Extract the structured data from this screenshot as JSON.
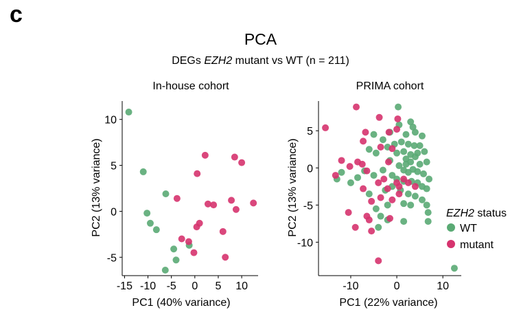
{
  "figure": {
    "panel_letter": "c",
    "title": "PCA",
    "subtitle_prefix": "DEGs ",
    "subtitle_gene": "EZH2",
    "subtitle_suffix": " mutant vs WT (n = 211)"
  },
  "legend": {
    "title_gene": "EZH2",
    "title_suffix": " status",
    "items": [
      {
        "label": "WT",
        "color": "#5aaa74"
      },
      {
        "label": "mutant",
        "color": "#d6336e"
      }
    ]
  },
  "chart_data": [
    {
      "type": "scatter",
      "title": "In-house cohort",
      "xlabel": "PC1 (40% variance)",
      "ylabel": "PC2 (13% variance)",
      "xlim": [
        -15.5,
        13.5
      ],
      "ylim": [
        -7,
        12
      ],
      "xticks": [
        -15,
        -10,
        -5,
        0,
        5,
        10
      ],
      "yticks": [
        -5,
        0,
        5,
        10
      ],
      "grid": false,
      "series": [
        {
          "name": "WT",
          "color": "#5aaa74",
          "points": [
            [
              -14.1,
              10.8
            ],
            [
              -11,
              4.3
            ],
            [
              -10.2,
              -0.2
            ],
            [
              -9.5,
              -1.3
            ],
            [
              -8.2,
              -2
            ],
            [
              -6.2,
              1.9
            ],
            [
              -4.5,
              -4.1
            ],
            [
              -4,
              -5.3
            ],
            [
              -6.3,
              -6.4
            ],
            [
              -1.2,
              -3.7
            ]
          ]
        },
        {
          "name": "mutant",
          "color": "#d6336e",
          "points": [
            [
              2.2,
              6.1
            ],
            [
              0.5,
              4.1
            ],
            [
              -3.8,
              1.4
            ],
            [
              2.8,
              0.8
            ],
            [
              4,
              0.7
            ],
            [
              8.5,
              5.9
            ],
            [
              10,
              5.3
            ],
            [
              7.8,
              1.2
            ],
            [
              8.8,
              0.2
            ],
            [
              12.5,
              0.9
            ],
            [
              -2.8,
              -3
            ],
            [
              -1.3,
              -3.3
            ],
            [
              0.4,
              -1.7
            ],
            [
              1,
              -1.3
            ],
            [
              6,
              -2.2
            ],
            [
              -0.2,
              -4.5
            ],
            [
              6.5,
              -5
            ]
          ]
        }
      ]
    },
    {
      "type": "scatter",
      "title": "PRIMA cohort",
      "xlabel": "PC1 (22% variance)",
      "ylabel": "PC2 (13% variance)",
      "xlim": [
        -17,
        14
      ],
      "ylim": [
        -14.5,
        9
      ],
      "xticks": [
        -10,
        0,
        10
      ],
      "yticks": [
        -10,
        -5,
        0,
        5
      ],
      "grid": false,
      "legend_position": "right",
      "series": [
        {
          "name": "WT",
          "color": "#5aaa74",
          "points": [
            [
              0.3,
              8.2
            ],
            [
              -5,
              4.5
            ],
            [
              -3,
              3.8
            ],
            [
              -1.5,
              4.8
            ],
            [
              0.5,
              5.8
            ],
            [
              2,
              4.5
            ],
            [
              3,
              6.2
            ],
            [
              3.5,
              5.5
            ],
            [
              4,
              4.8
            ],
            [
              5.5,
              4.3
            ],
            [
              1,
              3.5
            ],
            [
              2.5,
              3.2
            ],
            [
              3.8,
              3
            ],
            [
              -0.5,
              3.2
            ],
            [
              -2,
              2.8
            ],
            [
              -4.5,
              2
            ],
            [
              -6,
              2.5
            ],
            [
              1.5,
              2.2
            ],
            [
              4.5,
              2
            ],
            [
              6,
              2.2
            ],
            [
              2,
              1.2
            ],
            [
              3,
              0.8
            ],
            [
              4,
              1.5
            ],
            [
              5,
              0.5
            ],
            [
              6.5,
              0.8
            ],
            [
              -1.5,
              1
            ],
            [
              0.5,
              0.3
            ],
            [
              1.5,
              -0.3
            ],
            [
              2.5,
              -0.6
            ],
            [
              3.5,
              -0.2
            ],
            [
              4.5,
              -0.5
            ],
            [
              5.8,
              -0.8
            ],
            [
              7,
              -1.5
            ],
            [
              -3,
              -0.3
            ],
            [
              -5,
              -1
            ],
            [
              -7,
              -0.4
            ],
            [
              -8.5,
              -1.3
            ],
            [
              -10,
              -2
            ],
            [
              -12,
              -0.6
            ],
            [
              -13,
              -1.5
            ],
            [
              0,
              -1.5
            ],
            [
              1.5,
              -1.8
            ],
            [
              3.2,
              -1.8
            ],
            [
              4.5,
              -2
            ],
            [
              5.5,
              -2.5
            ],
            [
              6.5,
              -2.8
            ],
            [
              -1,
              -2.5
            ],
            [
              -2.5,
              -3
            ],
            [
              -6,
              -3.5
            ],
            [
              0.8,
              -3
            ],
            [
              2.5,
              -3.5
            ],
            [
              4,
              -3.8
            ],
            [
              1.5,
              -4.8
            ],
            [
              3,
              -5
            ],
            [
              5.5,
              -4.3
            ],
            [
              6.5,
              -5
            ],
            [
              -2,
              -5
            ],
            [
              -4.5,
              -5.5
            ],
            [
              -3.5,
              -6.5
            ],
            [
              -2,
              -7
            ],
            [
              -4,
              -8
            ],
            [
              1.5,
              -7.2
            ],
            [
              6.8,
              -6
            ],
            [
              6.8,
              -7.2
            ],
            [
              12.5,
              -13.5
            ],
            [
              -1,
              -1
            ],
            [
              2,
              0.5
            ],
            [
              3,
              1.8
            ],
            [
              0,
              2
            ],
            [
              5,
              3
            ]
          ]
        },
        {
          "name": "mutant",
          "color": "#d6336e",
          "points": [
            [
              -15.5,
              5.4
            ],
            [
              -8.8,
              8.2
            ],
            [
              -3.8,
              6.8
            ],
            [
              0.2,
              6.6
            ],
            [
              -6.8,
              4.8
            ],
            [
              -1.7,
              4.8
            ],
            [
              0,
              5.2
            ],
            [
              -7.3,
              3.6
            ],
            [
              -3.5,
              2.8
            ],
            [
              -1,
              2.6
            ],
            [
              -12,
              1
            ],
            [
              -8.5,
              0.8
            ],
            [
              -7.5,
              0.5
            ],
            [
              -10.2,
              0.2
            ],
            [
              -6.5,
              -0.4
            ],
            [
              -13.3,
              -1
            ],
            [
              -1.8,
              0.8
            ],
            [
              -2.8,
              -1.5
            ],
            [
              -4,
              -2
            ],
            [
              0,
              -2
            ],
            [
              -7.3,
              -2.8
            ],
            [
              -2,
              -2.8
            ],
            [
              0.5,
              -2.5
            ],
            [
              -3.5,
              -4
            ],
            [
              -5.5,
              -4.5
            ],
            [
              -10.5,
              -6
            ],
            [
              -6.5,
              -6.5
            ],
            [
              -6,
              -7
            ],
            [
              -9,
              -8
            ],
            [
              -5.5,
              -8.5
            ],
            [
              -4,
              -12.5
            ],
            [
              -1,
              -4.3
            ],
            [
              1.5,
              -1.5
            ],
            [
              -1.5,
              -6.8
            ],
            [
              0.5,
              -3.5
            ],
            [
              2.5,
              -2
            ],
            [
              4,
              -2.5
            ]
          ]
        }
      ]
    }
  ]
}
